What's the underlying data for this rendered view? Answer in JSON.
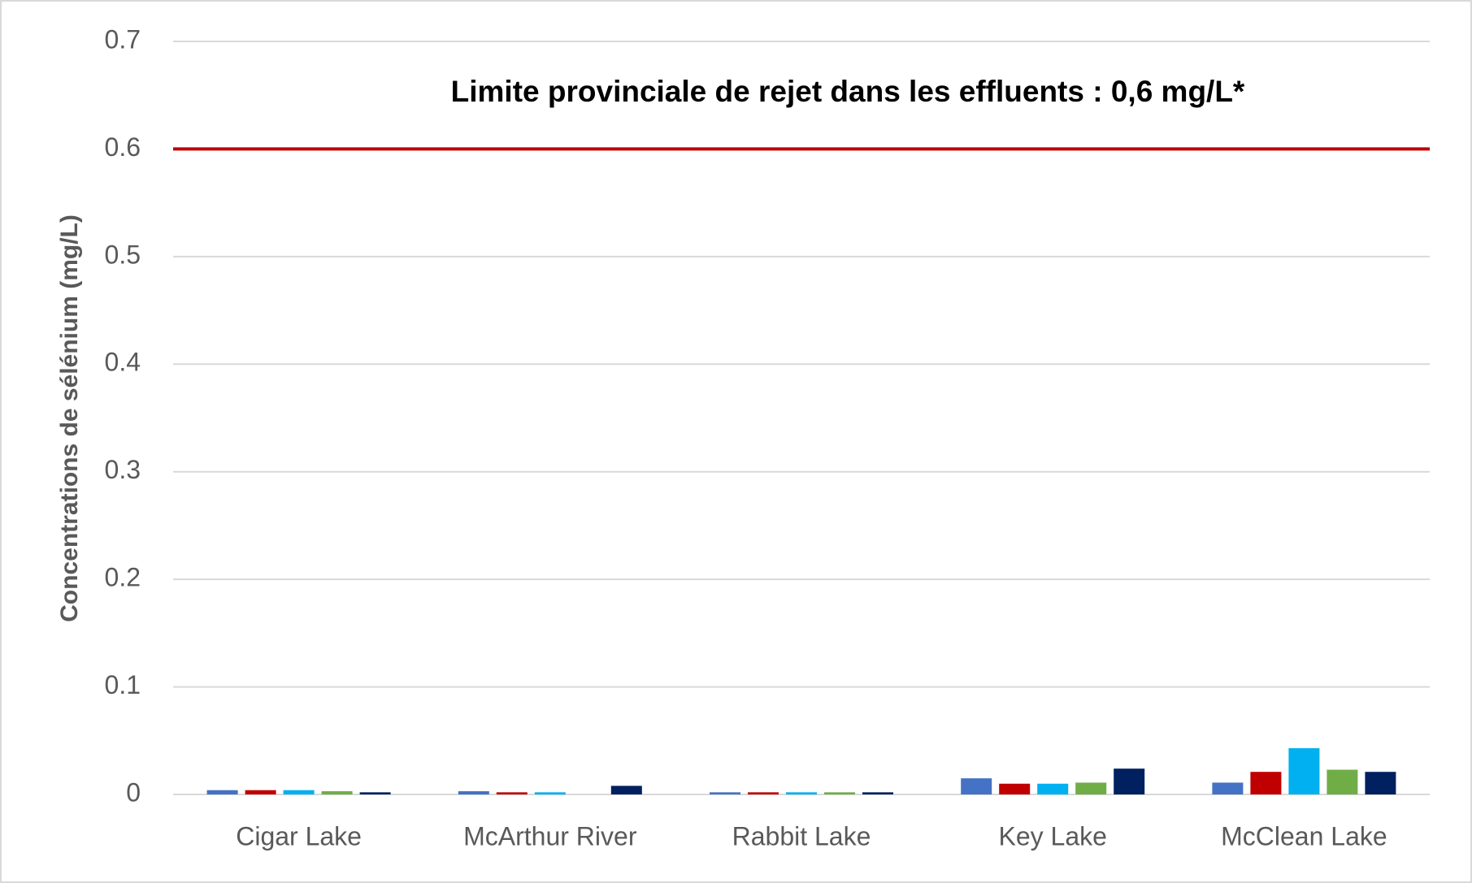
{
  "chart_data": {
    "type": "bar",
    "y_label": "Concentrations de sélénium (mg/L)",
    "categories": [
      "Cigar Lake",
      "McArthur River",
      "Rabbit Lake",
      "Key Lake",
      "McClean Lake"
    ],
    "series": [
      {
        "color": "#4472c4",
        "values": [
          0.004,
          0.003,
          0.002,
          0.015,
          0.011
        ]
      },
      {
        "color": "#c00000",
        "values": [
          0.004,
          0.002,
          0.002,
          0.01,
          0.021
        ]
      },
      {
        "color": "#00b0f0",
        "values": [
          0.004,
          0.002,
          0.002,
          0.01,
          0.043
        ]
      },
      {
        "color": "#70ad47",
        "values": [
          0.003,
          null,
          0.002,
          0.011,
          0.023
        ]
      },
      {
        "color": "#002060",
        "values": [
          0.002,
          0.008,
          0.002,
          0.024,
          0.021
        ]
      }
    ],
    "reference_line": {
      "value": 0.6,
      "label": "Limite provinciale de rejet dans les effluents : 0,6 mg/L*",
      "color": "#c00000"
    },
    "ylim": [
      0,
      0.7
    ],
    "yticks": [
      0,
      0.1,
      0.2,
      0.3,
      0.4,
      0.5,
      0.6,
      0.7
    ],
    "grid": true
  }
}
